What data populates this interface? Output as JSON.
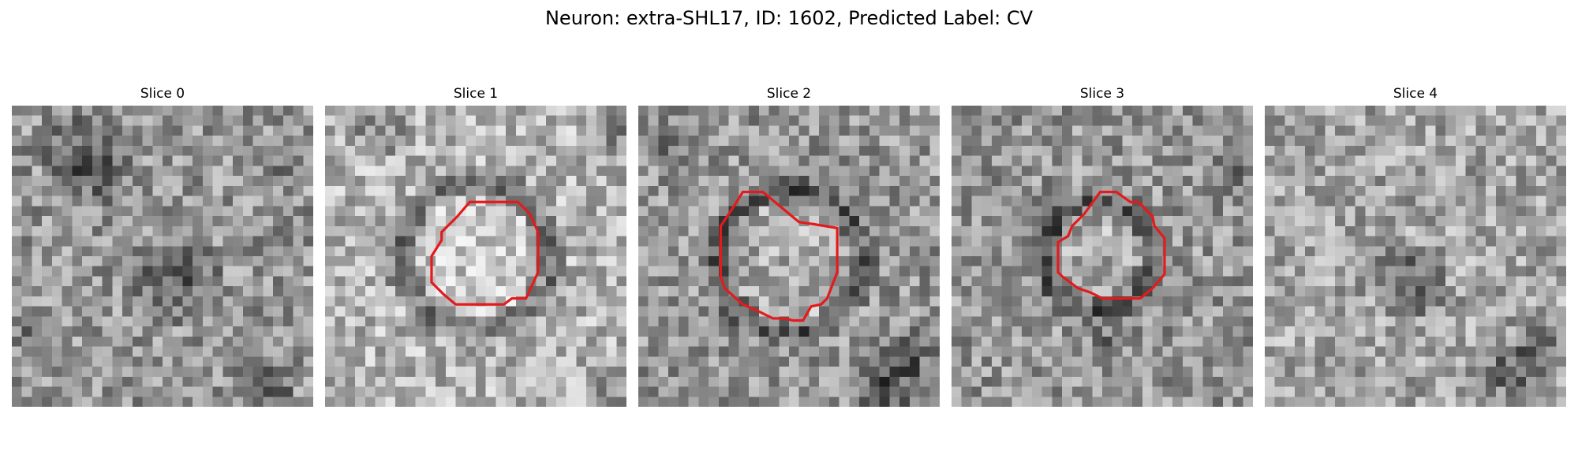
{
  "figure": {
    "title": "Neuron: extra-SHL17, ID: 1602, Predicted Label: CV",
    "overlay_color": "#e41a1c"
  },
  "panels": [
    {
      "title": "Slice 0",
      "has_contour": false
    },
    {
      "title": "Slice 1",
      "has_contour": true
    },
    {
      "title": "Slice 2",
      "has_contour": true
    },
    {
      "title": "Slice 3",
      "has_contour": true
    },
    {
      "title": "Slice 4",
      "has_contour": false
    }
  ]
}
